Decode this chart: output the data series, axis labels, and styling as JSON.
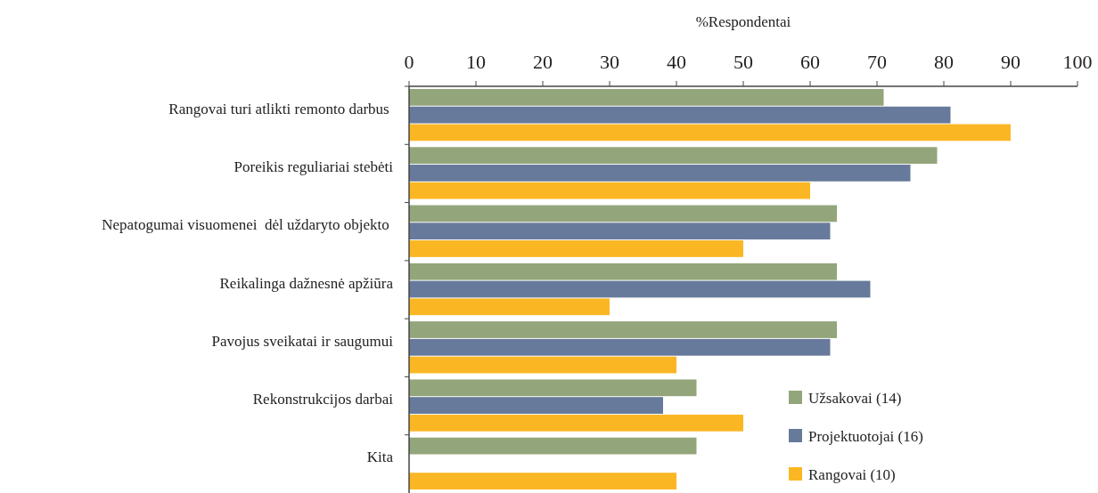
{
  "chart_data": {
    "type": "bar",
    "orientation": "horizontal",
    "xlabel": "%Respondentai",
    "categories": [
      "Rangovai turi atlikti remonto darbus ",
      "Poreikis reguliariai stebėti",
      "Nepatogumai visuomenei  dėl uždaryto objekto ",
      "Reikalinga dažnesnė apžiūra",
      "Pavojus sveikatai ir saugumui",
      "Rekonstrukcijos darbai",
      "Kita"
    ],
    "series": [
      {
        "name": "Užsakovai (14)",
        "color": "#93a57a",
        "values": [
          71,
          79,
          64,
          64,
          64,
          43,
          43
        ]
      },
      {
        "name": "Projektuotojai (16)",
        "color": "#677a9b",
        "values": [
          81,
          75,
          63,
          69,
          63,
          38,
          0
        ]
      },
      {
        "name": "Rangovai (10)",
        "color": "#fbb723",
        "values": [
          90,
          60,
          50,
          30,
          40,
          50,
          40
        ]
      }
    ],
    "xlim": [
      0,
      100
    ],
    "xticks": [
      0,
      10,
      20,
      30,
      40,
      50,
      60,
      70,
      80,
      90,
      100
    ],
    "grid": false,
    "legend": "bottom right"
  }
}
